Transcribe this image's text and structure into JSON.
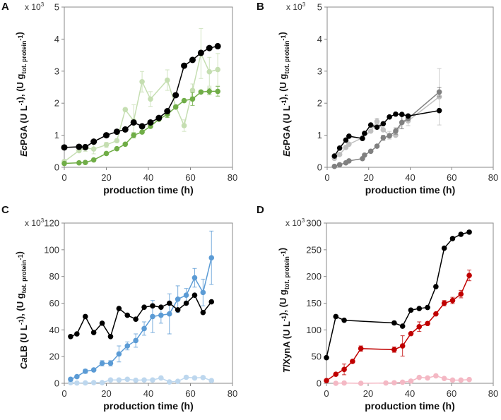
{
  "chart_data": [
    {
      "panel": "A",
      "type": "line",
      "multiplier": "x 10",
      "multiplier_exp": "3",
      "xlabel": "production time (h)",
      "xlim": [
        0,
        80
      ],
      "xticks": [
        0,
        20,
        40,
        60,
        80
      ],
      "ylim": [
        0,
        5
      ],
      "yticks": [
        0,
        1,
        2,
        3,
        4,
        5
      ],
      "ylabel": [
        {
          "t": "Ec",
          "i": true
        },
        {
          "t": "PGA (U L"
        },
        {
          "t": "-1",
          "sup": true
        },
        {
          "t": "), (U g"
        },
        {
          "t": "tot. protein",
          "sub": true
        },
        {
          "t": "-1",
          "sup": true
        },
        {
          "t": ")"
        }
      ],
      "series": [
        {
          "name": "light green",
          "color": "#c5deb1",
          "x": [
            0,
            7,
            10,
            14,
            20,
            25,
            29,
            33,
            37,
            41,
            49,
            53,
            57,
            61,
            65,
            69,
            73
          ],
          "y": [
            0.18,
            0.52,
            0.6,
            0.57,
            0.7,
            0.83,
            1.8,
            1.45,
            2.67,
            2.13,
            2.72,
            1.9,
            1.3,
            2.4,
            3.55,
            2.98,
            3.05
          ],
          "err": [
            0,
            0.05,
            0.1,
            0.15,
            0.08,
            0,
            0.05,
            0.5,
            0.32,
            0.23,
            0.32,
            0,
            0.18,
            0.2,
            0.78,
            0.45,
            0.5
          ]
        },
        {
          "name": "green",
          "color": "#70ad47",
          "x": [
            0,
            7,
            10,
            14,
            20,
            25,
            29,
            33,
            37,
            41,
            45,
            49,
            53,
            57,
            61,
            65,
            69,
            73
          ],
          "y": [
            0.12,
            0.14,
            0.15,
            0.23,
            0.43,
            0.58,
            0.72,
            1.0,
            1.1,
            1.28,
            1.5,
            1.65,
            1.88,
            2.08,
            2.13,
            2.35,
            2.37,
            2.37
          ],
          "err": [
            0,
            0,
            0,
            0,
            0,
            0,
            0,
            0.08,
            0,
            0,
            0,
            0.1,
            0,
            0,
            0.2,
            0.05,
            0.1,
            0.15
          ]
        },
        {
          "name": "black",
          "color": "#000000",
          "x": [
            0,
            7,
            10,
            14,
            20,
            25,
            29,
            33,
            37,
            41,
            45,
            49,
            53,
            57,
            61,
            65,
            69,
            73
          ],
          "y": [
            0.62,
            0.64,
            0.63,
            0.8,
            1.0,
            1.11,
            1.18,
            1.4,
            1.28,
            1.4,
            1.54,
            1.75,
            2.25,
            3.17,
            3.35,
            3.57,
            3.72,
            3.78
          ],
          "err": []
        }
      ]
    },
    {
      "panel": "B",
      "type": "line",
      "multiplier": "x 10",
      "multiplier_exp": "3",
      "xlabel": "production time (h)",
      "xlim": [
        0,
        80
      ],
      "xticks": [
        0,
        20,
        40,
        60,
        80
      ],
      "ylim": [
        0,
        5
      ],
      "yticks": [
        0,
        1,
        2,
        3,
        4,
        5
      ],
      "ylabel": [
        {
          "t": "Ec",
          "i": true
        },
        {
          "t": "PGA (U L"
        },
        {
          "t": "-1",
          "sup": true
        },
        {
          "t": "), (U g"
        },
        {
          "t": "tot. protein",
          "sub": true
        },
        {
          "t": "-1",
          "sup": true
        },
        {
          "t": ")"
        }
      ],
      "series": [
        {
          "name": "light gray",
          "color": "#c0c0c0",
          "x": [
            3.5,
            6,
            9,
            10.5,
            17,
            21,
            24,
            27,
            30,
            33,
            36,
            39,
            54
          ],
          "y": [
            0.28,
            0.4,
            0.62,
            0.72,
            0.92,
            1.13,
            1.43,
            1.17,
            1.0,
            1.0,
            1.4,
            1.45,
            2.2
          ],
          "err": [
            0,
            0,
            0,
            0,
            0,
            0,
            0.1,
            0,
            0.12,
            0,
            0.2,
            0.15,
            0.88
          ]
        },
        {
          "name": "dark gray",
          "color": "#808080",
          "x": [
            3.5,
            6,
            9,
            10.5,
            17,
            18,
            21,
            24,
            27,
            30,
            33,
            36,
            39,
            54
          ],
          "y": [
            0.03,
            0.08,
            0.14,
            0.2,
            0.27,
            0.38,
            0.5,
            0.66,
            0.92,
            0.98,
            1.13,
            1.4,
            1.52,
            2.35
          ],
          "err": [
            0,
            0,
            0,
            0,
            0,
            0,
            0,
            0,
            0.08,
            0,
            0.1,
            0.2,
            0,
            0.15
          ]
        },
        {
          "name": "black",
          "color": "#000000",
          "x": [
            3.5,
            6,
            9,
            10.5,
            17,
            18,
            21,
            24,
            27,
            30,
            33,
            36,
            39,
            54
          ],
          "y": [
            0.35,
            0.6,
            0.85,
            0.97,
            0.9,
            1.06,
            1.32,
            1.25,
            1.36,
            1.57,
            1.66,
            1.65,
            1.6,
            1.77
          ],
          "err": []
        }
      ]
    },
    {
      "panel": "C",
      "type": "line",
      "multiplier": "x 10",
      "multiplier_exp": "3",
      "xlabel": "production time (h)",
      "xlim": [
        0,
        80
      ],
      "xticks": [
        0,
        20,
        40,
        60,
        80
      ],
      "ylim": [
        0,
        120
      ],
      "yticks": [
        0,
        20,
        40,
        60,
        80,
        100,
        120
      ],
      "ylabel": [
        {
          "t": "Ca",
          "i": true
        },
        {
          "t": "LB (U L"
        },
        {
          "t": "-1",
          "sup": true
        },
        {
          "t": "), (U g"
        },
        {
          "t": "tot. protein",
          "sub": true
        },
        {
          "t": "-1",
          "sup": true
        },
        {
          "t": ")"
        }
      ],
      "series": [
        {
          "name": "light blue",
          "color": "#bdd7ee",
          "x": [
            3,
            6,
            10,
            14,
            18,
            22,
            26,
            30,
            34,
            38,
            42,
            46,
            50,
            54,
            58,
            62,
            66,
            70
          ],
          "y": [
            0.5,
            0.2,
            0.3,
            0.5,
            0.5,
            2.5,
            2.5,
            3,
            2.3,
            2.5,
            2.5,
            4,
            1,
            1.5,
            4.5,
            4,
            4.3,
            2
          ],
          "err": []
        },
        {
          "name": "blue",
          "color": "#5b9bd5",
          "x": [
            3,
            6,
            10,
            14,
            18,
            22,
            26,
            30,
            34,
            38,
            42,
            46,
            50,
            54,
            58,
            62,
            66,
            70
          ],
          "y": [
            3,
            5,
            9,
            10,
            15,
            15,
            22,
            28,
            32,
            41,
            50,
            51,
            52,
            63,
            66,
            79,
            68,
            94
          ],
          "err": [
            0,
            0,
            1.5,
            0,
            2,
            2,
            6,
            3,
            5,
            5,
            12,
            6,
            15,
            10,
            5,
            7,
            10,
            20
          ]
        },
        {
          "name": "black",
          "color": "#000000",
          "x": [
            3,
            6,
            10,
            14,
            18,
            22,
            26,
            30,
            34,
            38,
            42,
            46,
            50,
            54,
            58,
            62,
            66,
            70
          ],
          "y": [
            35,
            37,
            50,
            38,
            45,
            35,
            56,
            51,
            48,
            57,
            58,
            57,
            60,
            55,
            60,
            66,
            53,
            61
          ],
          "err": []
        }
      ]
    },
    {
      "panel": "D",
      "type": "line",
      "multiplier": "x 10",
      "multiplier_exp": "3",
      "xlabel": "production time (h)",
      "xlim": [
        0,
        80
      ],
      "xticks": [
        0,
        20,
        40,
        60,
        80
      ],
      "ylim": [
        0,
        300
      ],
      "yticks": [
        0,
        50,
        100,
        150,
        200,
        250,
        300
      ],
      "ylabel": [
        {
          "t": "Tl",
          "i": true
        },
        {
          "t": "XynA (U L"
        },
        {
          "t": "-1",
          "sup": true
        },
        {
          "t": "), (U g"
        },
        {
          "t": "tot. protein",
          "sub": true
        },
        {
          "t": "-1",
          "sup": true
        },
        {
          "t": ")"
        }
      ],
      "series": [
        {
          "name": "pink",
          "color": "#f4b8c4",
          "x": [
            4.5,
            8.5,
            16.5,
            28.5,
            32.5,
            36.5,
            40.5,
            44.5,
            48.5,
            52.5,
            56.5,
            60.5,
            64.5,
            68.5
          ],
          "y": [
            0,
            0.5,
            0,
            0.5,
            1,
            2,
            4,
            11,
            10,
            14,
            9,
            6,
            6,
            7
          ],
          "err": []
        },
        {
          "name": "red",
          "color": "#c00000",
          "x": [
            0,
            4.5,
            8.5,
            12.5,
            16.5,
            32.5,
            36.5,
            40.5,
            44.5,
            48.5,
            52.5,
            56.5,
            60.5,
            64.5,
            68.5
          ],
          "y": [
            5,
            17,
            26,
            41,
            65,
            63,
            70,
            93,
            106,
            112,
            130,
            150,
            155,
            167,
            202
          ],
          "err": [
            0,
            0,
            10,
            0,
            5,
            5,
            19,
            0,
            9,
            0,
            0,
            5,
            6,
            7,
            10
          ]
        },
        {
          "name": "black",
          "color": "#000000",
          "x": [
            0,
            4.5,
            8.5,
            32.5,
            36.5,
            40.5,
            44.5,
            48.5,
            52.5,
            56.5,
            60.5,
            64.5,
            68.5
          ],
          "y": [
            48,
            125,
            118,
            113,
            107,
            137,
            140,
            142,
            181,
            253,
            271,
            279,
            283
          ],
          "err": []
        }
      ]
    }
  ]
}
